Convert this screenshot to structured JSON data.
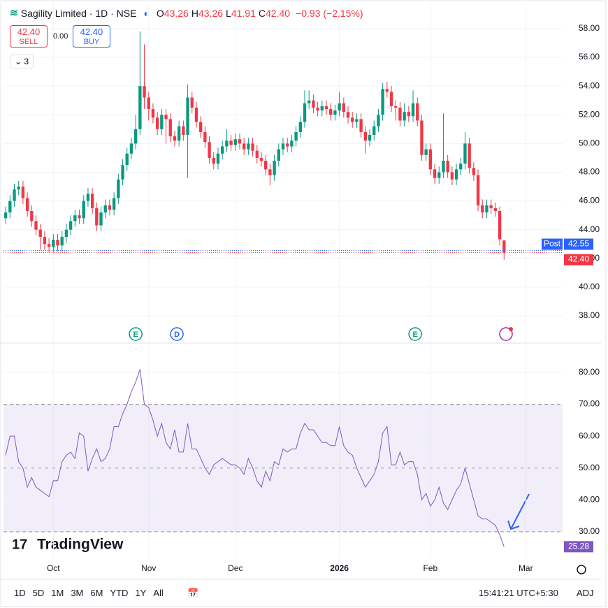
{
  "header": {
    "title": "Sagility Limited · 1D · NSE",
    "ohlc": [
      {
        "key": "O",
        "value": "43.26"
      },
      {
        "key": "H",
        "value": "43.26"
      },
      {
        "key": "L",
        "value": "41.91"
      },
      {
        "key": "C",
        "value": "42.40"
      }
    ],
    "change": "−0.93 (−2.15%)"
  },
  "trade": {
    "sell_price": "42.40",
    "sell_label": "SELL",
    "spread": "0.00",
    "buy_price": "42.40",
    "buy_label": "BUY"
  },
  "indicators_count": "3",
  "chart_data": [
    {
      "type": "candlestick",
      "up_color": "#089981",
      "down_color": "#f23645",
      "xlim": [
        -0.5,
        128.5
      ],
      "xticks": [
        {
          "value": 11,
          "label": "Oct"
        },
        {
          "value": 33,
          "label": "Nov"
        },
        {
          "value": 53,
          "label": "Dec"
        },
        {
          "value": 77,
          "label": "2026"
        },
        {
          "value": 98,
          "label": "Feb"
        },
        {
          "value": 120,
          "label": "Mar"
        }
      ],
      "ylim": [
        36.15,
        59.75
      ],
      "yticks": [
        {
          "value": 38,
          "label": "38.00"
        },
        {
          "value": 40,
          "label": "40.00"
        },
        {
          "value": 42,
          "label": "42.00"
        },
        {
          "value": 44,
          "label": "44.00"
        },
        {
          "value": 46,
          "label": "46.00"
        },
        {
          "value": 48,
          "label": "48.00"
        },
        {
          "value": 50,
          "label": "50.00"
        },
        {
          "value": 52,
          "label": "52.00"
        },
        {
          "value": 54,
          "label": "54.00"
        },
        {
          "value": 56,
          "label": "56.00"
        },
        {
          "value": 58,
          "label": "58.00"
        }
      ],
      "open": [
        44.8,
        45.2,
        46.0,
        46.8,
        47.0,
        46.2,
        45.3,
        44.6,
        44.0,
        43.5,
        43.0,
        42.8,
        43.3,
        42.9,
        43.5,
        44.0,
        44.6,
        45.0,
        44.8,
        46.0,
        46.5,
        45.5,
        44.3,
        45.2,
        45.7,
        45.4,
        46.2,
        47.5,
        48.5,
        49.3,
        50.0,
        51.0,
        54.0,
        53.2,
        52.4,
        51.8,
        51.0,
        52.0,
        51.7,
        50.5,
        50.2,
        51.2,
        50.6,
        53.2,
        52.5,
        51.5,
        50.8,
        50.1,
        49.0,
        48.6,
        49.3,
        49.8,
        50.2,
        49.9,
        50.3,
        50.0,
        49.6,
        50.0,
        49.5,
        49.0,
        48.8,
        48.2,
        47.8,
        48.8,
        49.6,
        50.0,
        49.8,
        50.2,
        50.8,
        51.5,
        52.8,
        53.0,
        52.5,
        52.3,
        52.6,
        52.4,
        52.0,
        52.3,
        52.8,
        52.2,
        51.8,
        51.5,
        51.7,
        50.8,
        50.2,
        50.6,
        51.2,
        52.0,
        53.8,
        53.6,
        52.6,
        52.5,
        51.6,
        52.2,
        51.9,
        52.8,
        51.6,
        49.2,
        49.6,
        48.2,
        47.6,
        48.0,
        48.8,
        48.0,
        47.5,
        48.2,
        48.6,
        50.0,
        48.3,
        47.8,
        45.7,
        45.2,
        45.7,
        45.5,
        45.3,
        43.26
      ],
      "high": [
        45.6,
        46.4,
        47.2,
        47.4,
        47.4,
        46.6,
        45.7,
        45.0,
        44.4,
        43.9,
        43.4,
        43.7,
        43.7,
        43.9,
        44.4,
        45.0,
        45.4,
        45.4,
        46.4,
        46.9,
        46.9,
        45.9,
        45.6,
        46.1,
        46.1,
        46.6,
        47.9,
        48.9,
        49.7,
        50.4,
        52.0,
        57.8,
        56.9,
        53.6,
        52.8,
        52.2,
        52.4,
        52.4,
        52.1,
        50.9,
        51.6,
        51.6,
        54.1,
        53.6,
        52.9,
        51.9,
        51.2,
        50.5,
        49.4,
        49.7,
        50.2,
        51.0,
        50.6,
        50.7,
        50.7,
        50.4,
        50.4,
        50.4,
        49.9,
        49.4,
        49.2,
        48.6,
        49.2,
        50.0,
        50.4,
        50.4,
        50.6,
        51.2,
        51.9,
        53.7,
        53.7,
        53.4,
        52.9,
        53.0,
        53.0,
        52.8,
        52.7,
        53.6,
        53.2,
        52.6,
        52.2,
        52.1,
        52.1,
        51.2,
        51.0,
        51.6,
        52.4,
        54.2,
        54.3,
        54.0,
        53.0,
        52.9,
        52.8,
        52.6,
        53.7,
        53.2,
        52.0,
        50.0,
        50.0,
        48.6,
        48.4,
        52.1,
        49.2,
        48.4,
        48.6,
        49.0,
        50.8,
        50.4,
        48.7,
        48.2,
        46.1,
        46.1,
        46.1,
        45.9,
        45.6,
        43.26
      ],
      "low": [
        44.4,
        44.8,
        45.6,
        46.4,
        45.8,
        44.9,
        44.2,
        43.6,
        42.6,
        42.6,
        42.4,
        42.4,
        42.5,
        42.5,
        43.1,
        43.6,
        44.2,
        44.4,
        44.4,
        45.6,
        45.1,
        43.9,
        43.9,
        44.8,
        45.0,
        45.0,
        45.8,
        47.1,
        48.1,
        48.9,
        49.6,
        50.6,
        52.4,
        51.6,
        51.4,
        50.6,
        50.6,
        50.0,
        50.1,
        49.8,
        49.8,
        50.2,
        47.6,
        52.1,
        51.1,
        50.4,
        49.7,
        48.6,
        48.2,
        48.2,
        48.9,
        49.4,
        49.5,
        49.5,
        49.6,
        49.2,
        49.2,
        49.1,
        48.6,
        48.4,
        47.8,
        47.1,
        47.4,
        48.4,
        49.2,
        49.4,
        49.4,
        49.8,
        50.4,
        51.1,
        52.4,
        52.1,
        51.9,
        51.9,
        52.0,
        51.6,
        51.6,
        51.9,
        51.8,
        51.4,
        51.1,
        51.1,
        50.4,
        49.3,
        49.8,
        50.2,
        50.8,
        51.6,
        53.2,
        52.2,
        51.6,
        51.2,
        51.2,
        51.5,
        51.5,
        51.2,
        48.8,
        48.8,
        47.8,
        47.2,
        47.2,
        47.6,
        47.6,
        47.1,
        47.1,
        47.8,
        48.2,
        47.9,
        47.4,
        45.3,
        44.8,
        44.8,
        45.1,
        44.9,
        42.9,
        41.91
      ],
      "close": [
        45.2,
        46.0,
        46.8,
        47.0,
        46.2,
        45.3,
        44.6,
        44.0,
        43.5,
        43.0,
        42.8,
        43.3,
        42.9,
        43.5,
        44.0,
        44.6,
        45.0,
        44.8,
        46.0,
        46.5,
        45.5,
        44.3,
        45.2,
        45.7,
        45.4,
        46.2,
        47.5,
        48.5,
        49.3,
        50.0,
        51.0,
        54.0,
        53.2,
        52.4,
        51.8,
        51.0,
        52.0,
        51.7,
        50.5,
        50.2,
        51.2,
        50.6,
        53.2,
        52.5,
        51.5,
        50.8,
        50.1,
        49.0,
        48.6,
        49.3,
        49.8,
        50.2,
        49.9,
        50.3,
        50.0,
        49.6,
        50.0,
        49.5,
        49.0,
        48.8,
        48.2,
        47.8,
        48.8,
        49.6,
        50.0,
        49.8,
        50.2,
        50.8,
        51.5,
        52.8,
        53.0,
        52.5,
        52.3,
        52.6,
        52.4,
        52.0,
        52.3,
        52.8,
        52.2,
        51.8,
        51.5,
        51.7,
        50.8,
        50.2,
        50.6,
        51.2,
        52.0,
        53.8,
        53.6,
        52.6,
        52.5,
        51.6,
        52.2,
        51.9,
        52.8,
        51.6,
        49.2,
        49.6,
        48.2,
        47.6,
        48.0,
        48.8,
        48.0,
        47.5,
        48.2,
        48.6,
        50.0,
        48.3,
        47.8,
        45.7,
        45.2,
        45.7,
        45.5,
        45.3,
        43.33,
        42.4
      ],
      "price_lines": [
        {
          "label": "Post",
          "value": 42.55,
          "value_label": "42.55",
          "color": "#2962ff"
        },
        {
          "value": 42.4,
          "value_label": "42.40",
          "color": "#f23645"
        }
      ],
      "events": [
        {
          "label": "E",
          "x": 30,
          "color": "#089981"
        },
        {
          "label": "D",
          "x": 39.5,
          "color": "#2962ff"
        },
        {
          "label": "E",
          "x": 94.5,
          "color": "#089981"
        }
      ]
    },
    {
      "type": "line",
      "color": "#7e57c2",
      "xlim": [
        -0.5,
        128.5
      ],
      "ylim": [
        21.4,
        89
      ],
      "yticks": [
        {
          "value": 30,
          "label": "30.00"
        },
        {
          "value": 40,
          "label": "40.00"
        },
        {
          "value": 50,
          "label": "50.00"
        },
        {
          "value": 60,
          "label": "60.00"
        },
        {
          "value": 70,
          "label": "70.00"
        },
        {
          "value": 80,
          "label": "80.00"
        }
      ],
      "levels": [
        30,
        50,
        70
      ],
      "values": [
        54,
        60,
        60,
        52,
        50,
        44,
        47,
        44,
        43,
        42,
        41,
        46,
        46,
        52,
        54,
        55,
        53,
        61,
        60,
        49,
        53,
        56,
        52,
        53,
        56,
        63,
        63,
        67,
        70,
        74,
        77,
        81,
        70,
        69,
        65,
        60,
        64,
        58,
        56,
        62,
        55,
        55,
        64,
        56,
        56,
        53,
        50,
        48,
        51,
        52,
        53,
        52,
        51,
        51,
        50,
        48,
        53,
        50,
        46,
        44,
        49,
        46,
        52,
        51,
        56,
        55,
        56,
        56,
        61,
        64,
        62,
        62,
        60,
        58,
        58,
        57,
        57,
        63,
        57,
        55,
        54,
        50,
        47,
        44,
        46,
        48,
        52,
        61,
        63,
        51,
        51,
        55,
        51,
        52,
        52,
        48,
        40,
        42,
        38,
        40,
        44,
        39,
        37,
        40,
        43,
        45,
        50,
        45,
        40,
        35,
        34,
        34,
        33,
        32,
        29,
        25.28
      ],
      "value_label": "25.28"
    }
  ],
  "branding": "TradingView",
  "toolbar": {
    "ranges": [
      "1D",
      "5D",
      "1M",
      "3M",
      "6M",
      "YTD",
      "1Y",
      "All"
    ],
    "time": "15:41:21 UTC+5:30",
    "adj": "ADJ"
  }
}
